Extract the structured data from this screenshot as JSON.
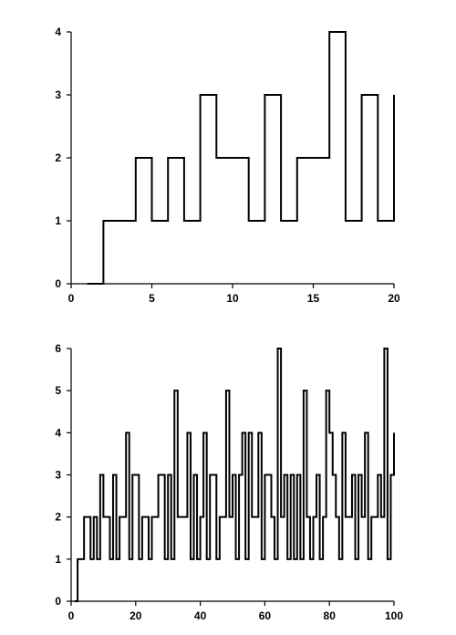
{
  "chart_data": [
    {
      "type": "line",
      "subtype": "step",
      "title": "",
      "xlabel": "",
      "ylabel": "",
      "xlim": [
        0,
        20
      ],
      "ylim": [
        0,
        4
      ],
      "xticks": [
        0,
        5,
        10,
        15,
        20
      ],
      "yticks": [
        0,
        1,
        2,
        3,
        4
      ],
      "grid": false,
      "series": [
        {
          "x": [
            1,
            2,
            3,
            4,
            5,
            6,
            7,
            8,
            9,
            10,
            11,
            12,
            13,
            14,
            15,
            16,
            17,
            18,
            19,
            20
          ],
          "values": [
            0,
            1,
            1,
            2,
            1,
            2,
            1,
            3,
            2,
            2,
            1,
            3,
            1,
            2,
            2,
            4,
            1,
            3,
            1,
            3
          ]
        }
      ]
    },
    {
      "type": "line",
      "subtype": "step",
      "title": "",
      "xlabel": "",
      "ylabel": "",
      "xlim": [
        0,
        100
      ],
      "ylim": [
        0,
        6
      ],
      "xticks": [
        0,
        20,
        40,
        60,
        80,
        100
      ],
      "yticks": [
        0,
        1,
        2,
        3,
        4,
        5,
        6
      ],
      "grid": false,
      "series": [
        {
          "x": [
            1,
            2,
            3,
            4,
            5,
            6,
            7,
            8,
            9,
            10,
            11,
            12,
            13,
            14,
            15,
            16,
            17,
            18,
            19,
            20,
            21,
            22,
            23,
            24,
            25,
            26,
            27,
            28,
            29,
            30,
            31,
            32,
            33,
            34,
            35,
            36,
            37,
            38,
            39,
            40,
            41,
            42,
            43,
            44,
            45,
            46,
            47,
            48,
            49,
            50,
            51,
            52,
            53,
            54,
            55,
            56,
            57,
            58,
            59,
            60,
            61,
            62,
            63,
            64,
            65,
            66,
            67,
            68,
            69,
            70,
            71,
            72,
            73,
            74,
            75,
            76,
            77,
            78,
            79,
            80,
            81,
            82,
            83,
            84,
            85,
            86,
            87,
            88,
            89,
            90,
            91,
            92,
            93,
            94,
            95,
            96,
            97,
            98,
            99,
            100
          ],
          "values": [
            0,
            1,
            1,
            2,
            2,
            1,
            2,
            1,
            3,
            2,
            2,
            1,
            3,
            1,
            2,
            2,
            4,
            1,
            3,
            3,
            1,
            2,
            2,
            1,
            2,
            2,
            3,
            3,
            1,
            3,
            1,
            5,
            2,
            2,
            2,
            4,
            1,
            3,
            1,
            2,
            4,
            1,
            3,
            3,
            1,
            2,
            2,
            5,
            2,
            3,
            1,
            3,
            4,
            1,
            4,
            2,
            2,
            4,
            1,
            3,
            3,
            2,
            1,
            6,
            2,
            3,
            1,
            3,
            1,
            3,
            1,
            5,
            2,
            1,
            2,
            3,
            1,
            2,
            5,
            4,
            3,
            2,
            1,
            4,
            2,
            2,
            3,
            1,
            3,
            2,
            4,
            1,
            2,
            2,
            3,
            2,
            6,
            1,
            3,
            4
          ]
        }
      ]
    }
  ]
}
